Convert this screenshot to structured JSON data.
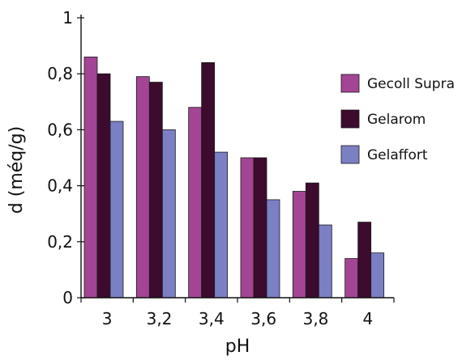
{
  "chart_data": {
    "type": "bar",
    "title": "",
    "xlabel": "pH",
    "ylabel": "d (méq/g)",
    "categories": [
      "3",
      "3,2",
      "3,4",
      "3,6",
      "3,8",
      "4"
    ],
    "ylim": [
      0,
      1
    ],
    "yticks": [
      "0",
      "0,2",
      "0,4",
      "0,6",
      "0,8",
      "1"
    ],
    "grid": false,
    "legend_position": "right",
    "series": [
      {
        "name": "Gecoll Supra",
        "color": "#a34594",
        "values": [
          0.86,
          0.79,
          0.68,
          0.5,
          0.38,
          0.14
        ]
      },
      {
        "name": "Gelarom",
        "color": "#3d0b2e",
        "values": [
          0.8,
          0.77,
          0.84,
          0.5,
          0.41,
          0.27
        ]
      },
      {
        "name": "Gelaffort",
        "color": "#7b7fc4",
        "values": [
          0.63,
          0.6,
          0.52,
          0.35,
          0.26,
          0.16
        ]
      }
    ]
  }
}
